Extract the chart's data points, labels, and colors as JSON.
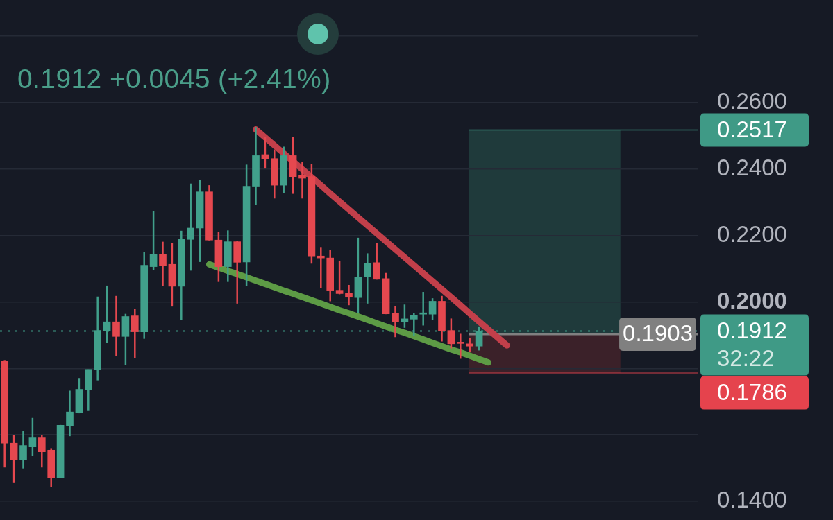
{
  "chart_data": {
    "type": "candlestick",
    "subtitle": "0.1912 +0.0045 (+2.41%)",
    "categories": [
      null,
      null,
      null,
      null,
      null,
      null,
      null,
      null,
      null,
      null,
      null,
      null,
      null,
      null,
      null,
      null,
      null,
      null,
      null,
      null,
      null,
      null,
      null,
      null,
      null,
      null,
      null,
      null,
      null,
      null,
      null,
      null,
      null,
      null,
      null,
      null,
      null,
      null,
      null,
      null,
      null,
      null,
      null,
      null,
      null,
      null,
      null,
      null,
      null,
      null,
      null,
      null,
      null,
      null,
      null,
      null,
      null,
      null,
      null,
      null,
      null,
      null,
      null,
      null,
      null,
      null,
      null,
      null,
      null,
      null,
      null,
      null,
      null,
      null,
      null
    ],
    "ohlc": [
      [
        0.1821,
        0.1825,
        0.1502,
        0.1575
      ],
      [
        0.1575,
        0.1599,
        0.1457,
        0.1526
      ],
      [
        0.1526,
        0.1613,
        0.1499,
        0.1568
      ],
      [
        0.1565,
        0.1651,
        0.1537,
        0.1591
      ],
      [
        0.1591,
        0.1599,
        0.1502,
        0.1549
      ],
      [
        0.1554,
        0.156,
        0.1443,
        0.1471
      ],
      [
        0.1471,
        0.163,
        0.147,
        0.1629
      ],
      [
        0.1627,
        0.1733,
        0.1596,
        0.1669
      ],
      [
        0.1667,
        0.1771,
        0.1665,
        0.1737
      ],
      [
        0.1736,
        0.1797,
        0.1672,
        0.1797
      ],
      [
        0.1797,
        0.2016,
        0.1764,
        0.1914
      ],
      [
        0.1913,
        0.2049,
        0.1877,
        0.194
      ],
      [
        0.194,
        0.2018,
        0.1838,
        0.1896
      ],
      [
        0.1896,
        0.1964,
        0.1811,
        0.1956
      ],
      [
        0.1958,
        0.1978,
        0.1832,
        0.191
      ],
      [
        0.191,
        0.2149,
        0.1889,
        0.211
      ],
      [
        0.2106,
        0.2273,
        0.2096,
        0.2143
      ],
      [
        0.2143,
        0.2181,
        0.2047,
        0.211
      ],
      [
        0.2113,
        0.2178,
        0.1986,
        0.2047
      ],
      [
        0.2047,
        0.2214,
        0.1946,
        0.219
      ],
      [
        0.2188,
        0.2356,
        0.2094,
        0.2222
      ],
      [
        0.2222,
        0.2367,
        0.212,
        0.2331
      ],
      [
        0.2331,
        0.2351,
        0.2185,
        0.2186
      ],
      [
        0.2186,
        0.221,
        0.206,
        0.2106
      ],
      [
        0.2106,
        0.2215,
        0.206,
        0.2181
      ],
      [
        0.2181,
        0.2183,
        0.1995,
        0.2119
      ],
      [
        0.212,
        0.2413,
        0.2047,
        0.2348
      ],
      [
        0.2348,
        0.2526,
        0.2292,
        0.244
      ],
      [
        0.2443,
        0.2495,
        0.2401,
        0.2431
      ],
      [
        0.2431,
        0.2457,
        0.2311,
        0.2351
      ],
      [
        0.2351,
        0.2467,
        0.2327,
        0.244
      ],
      [
        0.244,
        0.2497,
        0.2325,
        0.2375
      ],
      [
        0.2381,
        0.2422,
        0.2311,
        0.2372
      ],
      [
        0.2377,
        0.2415,
        0.2115,
        0.2138
      ],
      [
        0.2138,
        0.2165,
        0.2042,
        0.2132
      ],
      [
        0.2132,
        0.2157,
        0.2002,
        0.2035
      ],
      [
        0.2035,
        0.2124,
        0.2023,
        0.2025
      ],
      [
        0.2026,
        0.2051,
        0.199,
        0.2014
      ],
      [
        0.2013,
        0.2193,
        0.1967,
        0.2074
      ],
      [
        0.2075,
        0.2146,
        0.1995,
        0.2115
      ],
      [
        0.2118,
        0.2177,
        0.2067,
        0.2068
      ],
      [
        0.207,
        0.2087,
        0.1963,
        0.1964
      ],
      [
        0.1965,
        0.1988,
        0.1894,
        0.194
      ],
      [
        0.194,
        0.1992,
        0.1922,
        0.1949
      ],
      [
        0.1948,
        0.1967,
        0.1898,
        0.196
      ],
      [
        0.1963,
        0.203,
        0.1929,
        0.1967
      ],
      [
        0.1963,
        0.2011,
        0.1946,
        0.2002
      ],
      [
        0.2002,
        0.2018,
        0.1881,
        0.1912
      ],
      [
        0.1914,
        0.195,
        0.186,
        0.1874
      ],
      [
        0.1879,
        0.1904,
        0.1829,
        0.1875
      ],
      [
        0.1874,
        0.1892,
        0.1849,
        0.1867
      ],
      [
        0.1867,
        0.1926,
        0.1854,
        0.1912
      ],
      null,
      null,
      null,
      null,
      null,
      null,
      null,
      null,
      null,
      null,
      null,
      null,
      null,
      null,
      null,
      null,
      null,
      null,
      null,
      null,
      null,
      null,
      null
    ],
    "colors": [
      "#e5484f",
      "#e5484f",
      "#41a08b",
      "#41a08b",
      "#e5484f",
      "#e5484f",
      "#41a08b",
      "#41a08b",
      "#41a08b",
      "#41a08b",
      "#41a08b",
      "#41a08b",
      "#e5484f",
      "#41a08b",
      "#e5484f",
      "#41a08b",
      "#41a08b",
      "#e5484f",
      "#e5484f",
      "#41a08b",
      "#41a08b",
      "#41a08b",
      "#e5484f",
      "#e5484f",
      "#41a08b",
      "#e5484f",
      "#41a08b",
      "#41a08b",
      "#e5484f",
      "#e5484f",
      "#41a08b",
      "#e5484f",
      "#e5484f",
      "#e5484f",
      "#e5484f",
      "#e5484f",
      "#e5484f",
      "#e5484f",
      "#41a08b",
      "#41a08b",
      "#e5484f",
      "#e5484f",
      "#e5484f",
      "#41a08b",
      "#41a08b",
      "#41a08b",
      "#41a08b",
      "#e5484f",
      "#e5484f",
      "#e5484f",
      "#e5484f",
      "#41a08b",
      null,
      null,
      null,
      null,
      null,
      null,
      null,
      null,
      null,
      null,
      null,
      null,
      null,
      null,
      null,
      null,
      null,
      null,
      null,
      null,
      null,
      null,
      null
    ],
    "series": [
      {
        "type": "line",
        "color": "#c23f4a",
        "values": [
          null,
          null,
          null,
          null,
          null,
          null,
          null,
          null,
          null,
          null,
          null,
          null,
          null,
          null,
          null,
          null,
          null,
          null,
          null,
          null,
          null,
          null,
          null,
          null,
          null,
          null,
          null,
          0.2519,
          0.2495,
          0.2471,
          0.2447,
          0.2423,
          0.2399,
          0.2375,
          0.2351,
          0.2326,
          0.2302,
          0.2278,
          0.2254,
          0.223,
          0.2206,
          0.2182,
          0.2158,
          0.2134,
          0.211,
          0.2086,
          0.2062,
          0.2038,
          0.2014,
          0.199,
          0.1965,
          0.1941,
          0.1917,
          0.1893,
          0.1869,
          null,
          null,
          null,
          null,
          null,
          null,
          null,
          null,
          null,
          null,
          null,
          null,
          null,
          null,
          null,
          null,
          null,
          null,
          null,
          null
        ]
      },
      {
        "type": "line",
        "color": "#5d9b45",
        "values": [
          null,
          null,
          null,
          null,
          null,
          null,
          null,
          null,
          null,
          null,
          null,
          null,
          null,
          null,
          null,
          null,
          null,
          null,
          null,
          null,
          null,
          null,
          0.2113,
          0.2103,
          0.2093,
          0.2084,
          0.2074,
          0.2064,
          0.2054,
          0.2044,
          0.2034,
          0.2025,
          0.2015,
          0.2005,
          0.1995,
          0.1985,
          0.1975,
          0.1966,
          0.1956,
          0.1946,
          0.1936,
          0.1926,
          0.1916,
          0.1907,
          0.1897,
          0.1887,
          0.1877,
          0.1867,
          0.1857,
          0.1848,
          0.1838,
          0.1828,
          0.1818,
          null,
          null,
          null,
          null,
          null,
          null,
          null,
          null,
          null,
          null,
          null,
          null,
          null,
          null,
          null,
          null,
          null,
          null,
          null,
          null,
          null,
          null
        ]
      }
    ],
    "ylim": [
      0.1344,
      0.2908
    ],
    "yticks": [
      {
        "value": 0.14,
        "label": "0.1400"
      },
      {
        "value": 0.16,
        "label": null
      },
      {
        "value": 0.18,
        "label": null
      },
      {
        "value": 0.2,
        "label": "0.2000"
      },
      {
        "value": 0.22,
        "label": "0.2200"
      },
      {
        "value": 0.24,
        "label": "0.2400"
      },
      {
        "value": 0.26,
        "label": "0.2600"
      },
      {
        "value": 0.28,
        "label": null
      }
    ],
    "grid": "y",
    "tick_labels": "y",
    "ref_lines": [
      {
        "axis": "y",
        "value": 0.2517,
        "label": "0.2517",
        "color": "#3f9a86"
      },
      {
        "axis": "y",
        "value": 0.1912,
        "label": "0.1912\n32:22",
        "color": "#3f9a86",
        "line_style": "dotted"
      },
      {
        "axis": "y",
        "value": 0.1903,
        "label": "0.1903",
        "color": "#808080"
      },
      {
        "axis": "y",
        "value": 0.1786,
        "label": "0.1786",
        "color": "#e5434d"
      }
    ],
    "bands": [
      {
        "axis": "y",
        "from": 0.1903,
        "to": 0.2517,
        "color": "#1f3a3b"
      },
      {
        "axis": "y",
        "from": 0.1786,
        "to": 0.1903,
        "color": "#3b2129"
      }
    ]
  }
}
